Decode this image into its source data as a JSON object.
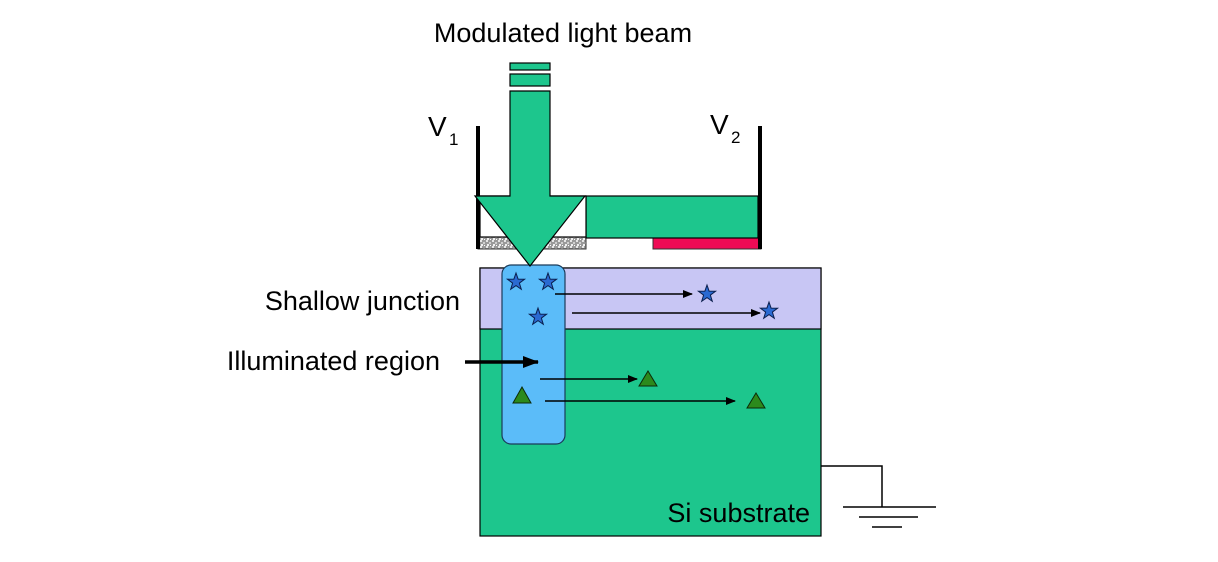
{
  "labels": {
    "beam": "Modulated light beam",
    "v1_main": "V",
    "v1_sub": "1",
    "v2_main": "V",
    "v2_sub": "2",
    "shallow_junction": "Shallow junction",
    "illuminated_region": "Illuminated region",
    "substrate": "Si substrate"
  },
  "colors": {
    "beam": "#1dc68d",
    "substrate": "#1dc68d",
    "junction": "#c8c6f4",
    "illuminated": "#5bbcf9",
    "electrode_v2": "#ee0b55",
    "electrode_v1": "#aaaaaa",
    "star": "#2a6ad2",
    "triangle": "#2c8a1c"
  },
  "icons": {
    "carrier_junction": "star",
    "carrier_substrate": "triangle",
    "ground": "ground-symbol"
  }
}
